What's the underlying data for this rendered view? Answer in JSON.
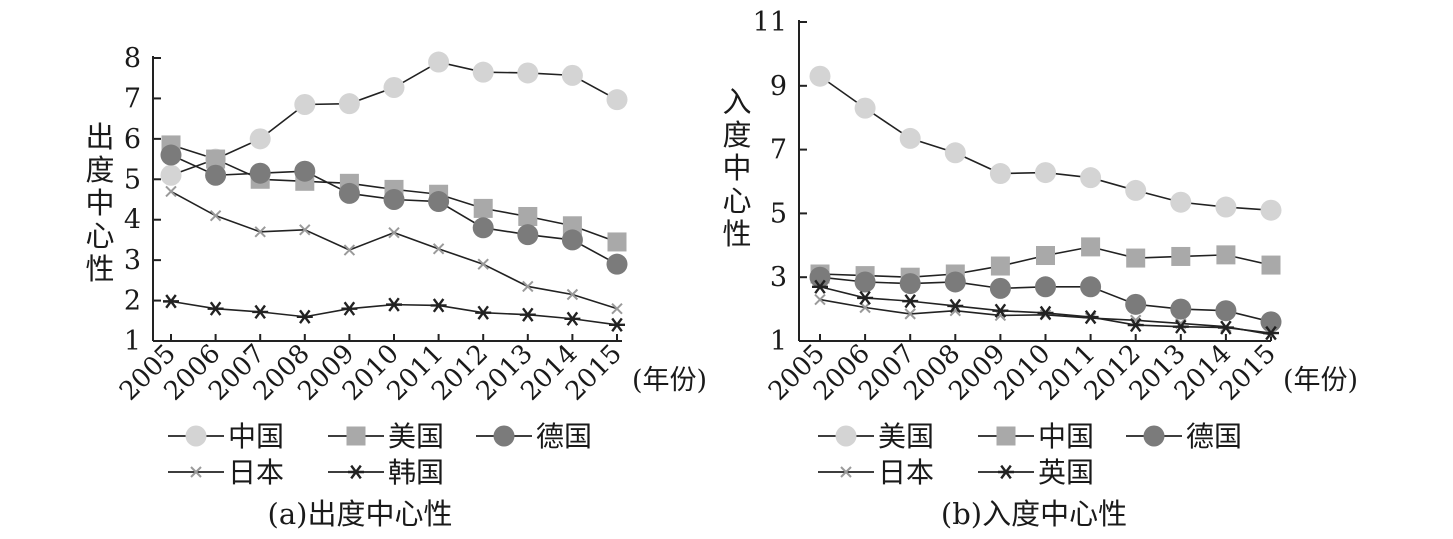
{
  "chart_data": [
    {
      "type": "line",
      "title": "(a)出度中心性",
      "ylabel": "出度中心性",
      "xlabel": "(年份)",
      "categories": [
        "2005",
        "2006",
        "2007",
        "2008",
        "2009",
        "2010",
        "2011",
        "2012",
        "2013",
        "2014",
        "2015"
      ],
      "ylim": [
        1,
        8
      ],
      "yticks": [
        1,
        2,
        3,
        4,
        5,
        6,
        7,
        8
      ],
      "series": [
        {
          "name": "中国",
          "marker": "circle",
          "color": "#d4d4d4",
          "values": [
            5.1,
            5.5,
            6.0,
            6.85,
            6.87,
            7.27,
            7.9,
            7.65,
            7.63,
            7.57,
            6.97
          ]
        },
        {
          "name": "美国",
          "marker": "square",
          "color": "#a9a9a9",
          "values": [
            5.85,
            5.5,
            5.0,
            4.95,
            4.9,
            4.75,
            4.63,
            4.28,
            4.08,
            3.85,
            3.45
          ]
        },
        {
          "name": "德国",
          "marker": "circle",
          "color": "#7b7b7b",
          "values": [
            5.6,
            5.1,
            5.15,
            5.2,
            4.65,
            4.5,
            4.45,
            3.8,
            3.63,
            3.5,
            2.9
          ]
        },
        {
          "name": "日本",
          "marker": "x",
          "color": "#9a9a9a",
          "values": [
            4.7,
            4.1,
            3.7,
            3.75,
            3.25,
            3.68,
            3.28,
            2.9,
            2.35,
            2.15,
            1.8
          ]
        },
        {
          "name": "韩国",
          "marker": "asterisk",
          "color": "#222222",
          "values": [
            1.98,
            1.8,
            1.72,
            1.6,
            1.8,
            1.9,
            1.88,
            1.7,
            1.65,
            1.55,
            1.4
          ]
        }
      ],
      "legend": "bottom"
    },
    {
      "type": "line",
      "title": "(b)入度中心性",
      "ylabel": "入度中心性",
      "xlabel": "(年份)",
      "categories": [
        "2005",
        "2006",
        "2007",
        "2008",
        "2009",
        "2010",
        "2011",
        "2012",
        "2013",
        "2014",
        "2015"
      ],
      "ylim": [
        1,
        11
      ],
      "yticks": [
        1,
        3,
        5,
        7,
        9,
        11
      ],
      "series": [
        {
          "name": "美国",
          "marker": "circle",
          "color": "#d4d4d4",
          "values": [
            9.3,
            8.3,
            7.35,
            6.9,
            6.25,
            6.28,
            6.12,
            5.72,
            5.35,
            5.2,
            5.1
          ]
        },
        {
          "name": "中国",
          "marker": "square",
          "color": "#a9a9a9",
          "values": [
            3.1,
            3.05,
            3.0,
            3.1,
            3.35,
            3.68,
            3.95,
            3.6,
            3.65,
            3.7,
            3.38
          ]
        },
        {
          "name": "德国",
          "marker": "circle",
          "color": "#7b7b7b",
          "values": [
            3.0,
            2.85,
            2.8,
            2.85,
            2.65,
            2.7,
            2.7,
            2.15,
            2.0,
            1.95,
            1.6
          ]
        },
        {
          "name": "日本",
          "marker": "x",
          "color": "#9a9a9a",
          "values": [
            2.3,
            2.05,
            1.85,
            1.95,
            1.8,
            1.82,
            1.72,
            1.65,
            1.55,
            1.45,
            1.2
          ]
        },
        {
          "name": "英国",
          "marker": "asterisk",
          "color": "#222222",
          "values": [
            2.7,
            2.35,
            2.25,
            2.1,
            1.95,
            1.88,
            1.75,
            1.5,
            1.45,
            1.42,
            1.25
          ]
        }
      ],
      "legend": "bottom"
    }
  ]
}
